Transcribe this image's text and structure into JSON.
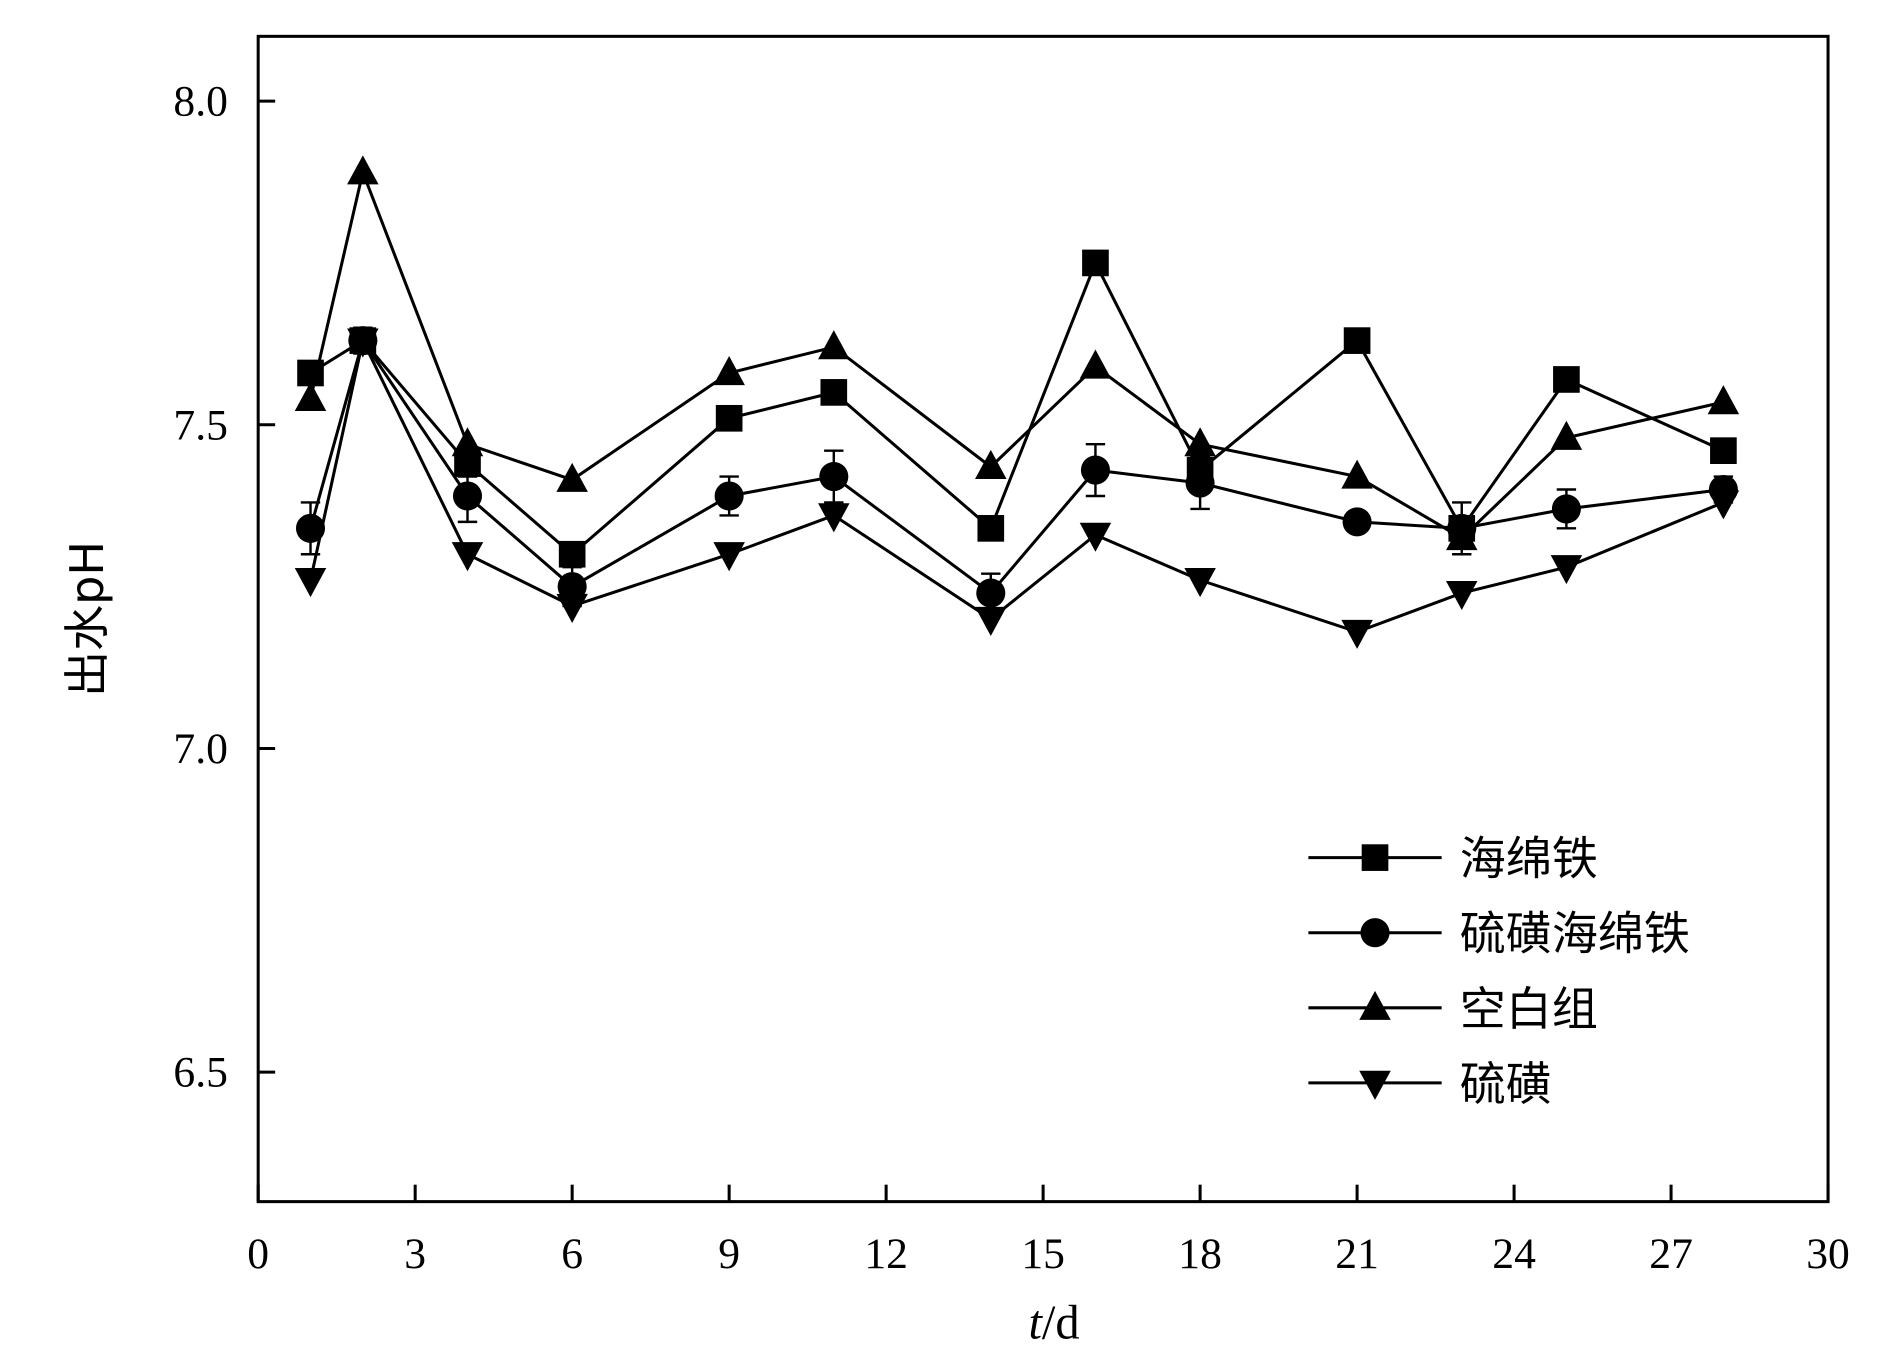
{
  "chart_data": {
    "type": "line",
    "title": "",
    "xlabel_italic": "t",
    "xlabel_unit": "/d",
    "ylabel": "出水pH",
    "xlim": [
      0,
      30
    ],
    "ylim": [
      6.3,
      8.1
    ],
    "xticks": [
      0,
      3,
      6,
      9,
      12,
      15,
      18,
      21,
      24,
      27,
      30
    ],
    "yticks": [
      "6.5",
      "7.0",
      "7.5",
      "8.0"
    ],
    "grid": false,
    "legend_position": "bottom-right",
    "x": [
      1,
      2,
      4,
      6,
      9,
      11,
      14,
      16,
      18,
      21,
      23,
      25,
      28
    ],
    "series": [
      {
        "name": "海绵铁",
        "marker": "square",
        "values": [
          7.58,
          7.63,
          7.44,
          7.3,
          7.51,
          7.55,
          7.34,
          7.75,
          7.43,
          7.63,
          7.34,
          7.57,
          7.46
        ],
        "errors": [
          0.01,
          0.01,
          0.02,
          0.01,
          0.01,
          0.01,
          0.01,
          0.01,
          0.02,
          0.01,
          0.01,
          0.01,
          0.01
        ]
      },
      {
        "name": "硫磺海绵铁",
        "marker": "circle",
        "values": [
          7.34,
          7.63,
          7.39,
          7.25,
          7.39,
          7.42,
          7.24,
          7.43,
          7.41,
          7.35,
          7.34,
          7.37,
          7.4
        ],
        "errors": [
          0.04,
          0.02,
          0.04,
          0.03,
          0.03,
          0.04,
          0.03,
          0.04,
          0.04,
          0.01,
          0.04,
          0.03,
          0.02
        ]
      },
      {
        "name": "空白组",
        "marker": "triangle-up",
        "values": [
          7.54,
          7.89,
          7.47,
          7.415,
          7.58,
          7.62,
          7.435,
          7.59,
          7.47,
          7.42,
          7.325,
          7.48,
          7.535
        ],
        "errors": [
          0,
          0,
          0,
          0,
          0,
          0,
          0,
          0,
          0,
          0,
          0,
          0,
          0
        ]
      },
      {
        "name": "硫磺",
        "marker": "triangle-down",
        "values": [
          7.26,
          7.63,
          7.3,
          7.22,
          7.3,
          7.36,
          7.2,
          7.33,
          7.26,
          7.18,
          7.24,
          7.28,
          7.38
        ],
        "errors": [
          0,
          0,
          0,
          0,
          0,
          0,
          0,
          0,
          0,
          0,
          0,
          0,
          0
        ]
      }
    ],
    "colors": {
      "line": "#000000",
      "background": "#ffffff"
    }
  }
}
